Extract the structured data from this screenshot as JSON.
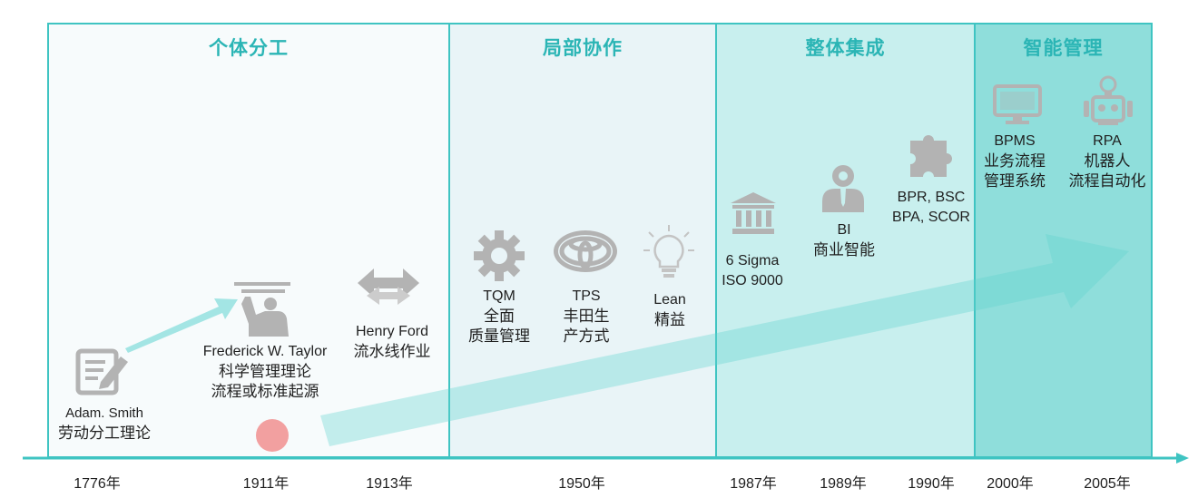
{
  "phases": [
    {
      "id": "p1",
      "title": "个体分工"
    },
    {
      "id": "p2",
      "title": "局部协作"
    },
    {
      "id": "p3",
      "title": "整体集成"
    },
    {
      "id": "p4",
      "title": "智能管理"
    }
  ],
  "items": {
    "smith": [
      "Adam. Smith",
      "劳动分工理论"
    ],
    "taylor": [
      "Frederick W. Taylor",
      "科学管理理论",
      "流程或标准起源"
    ],
    "ford": [
      "Henry Ford",
      "流水线作业"
    ],
    "tqm": [
      "TQM",
      "全面",
      "质量管理"
    ],
    "tps": [
      "TPS",
      "丰田生",
      "产方式"
    ],
    "lean": [
      "Lean",
      "精益"
    ],
    "sigma": [
      "6 Sigma",
      "ISO 9000"
    ],
    "bi": [
      "BI",
      "商业智能"
    ],
    "bpr": [
      "BPR, BSC",
      "BPA, SCOR"
    ],
    "bpms": [
      "BPMS",
      "业务流程",
      "管理系统"
    ],
    "rpa": [
      "RPA",
      "机器人",
      "流程自动化"
    ]
  },
  "years": [
    "1776年",
    "1911年",
    "1913年",
    "1950年",
    "1987年",
    "1989年",
    "1990年",
    "2000年",
    "2005年"
  ],
  "icons": [
    "edit-document-icon",
    "presenter-board-icon",
    "double-arrow-icon",
    "gear-icon",
    "toyota-logo-icon",
    "lightbulb-icon",
    "bank-building-icon",
    "user-bust-icon",
    "puzzle-piece-icon",
    "monitor-icon",
    "robot-icon"
  ],
  "colors": {
    "teal_border": "#3fc4c2",
    "teal_title": "#2bb5b5",
    "arrow": "#5fd3cf",
    "icon_gray": "#b3b3b3",
    "marker": "#f2a0a0"
  }
}
